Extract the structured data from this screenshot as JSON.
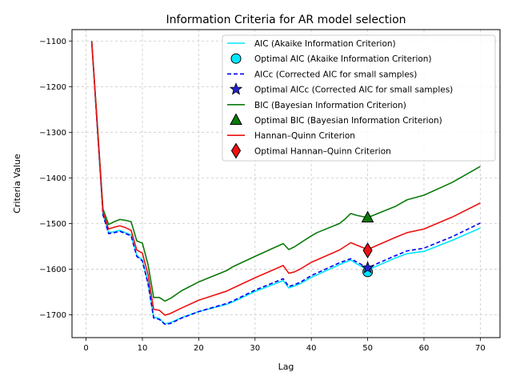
{
  "chart_data": {
    "type": "line",
    "title": "Information Criteria for AR model selection",
    "xlabel": "Lag",
    "ylabel": "Criteria Value",
    "xlim": [
      -2.5,
      73.5
    ],
    "ylim": [
      -1750,
      -1075
    ],
    "xticks": [
      0,
      10,
      20,
      30,
      40,
      50,
      60,
      70
    ],
    "yticks": [
      -1700,
      -1600,
      -1500,
      -1400,
      -1300,
      -1200,
      -1100
    ],
    "grid": true,
    "legend_position": "top-right",
    "series": [
      {
        "name": "AIC (Akaike Information Criterion)",
        "style": "solid",
        "color": "#00e5ff",
        "points": [
          [
            1,
            -1101
          ],
          [
            2,
            -1290
          ],
          [
            3,
            -1480
          ],
          [
            4,
            -1520
          ],
          [
            5,
            -1518
          ],
          [
            6,
            -1515
          ],
          [
            7,
            -1520
          ],
          [
            8,
            -1525
          ],
          [
            9,
            -1570
          ],
          [
            10,
            -1580
          ],
          [
            11,
            -1630
          ],
          [
            12,
            -1705
          ],
          [
            13,
            -1708
          ],
          [
            14,
            -1720
          ],
          [
            15,
            -1717
          ],
          [
            17,
            -1706
          ],
          [
            20,
            -1693
          ],
          [
            25,
            -1677
          ],
          [
            26,
            -1672
          ],
          [
            30,
            -1649
          ],
          [
            35,
            -1625
          ],
          [
            36,
            -1641
          ],
          [
            37,
            -1637
          ],
          [
            38,
            -1632
          ],
          [
            40,
            -1618
          ],
          [
            45,
            -1590
          ],
          [
            47,
            -1580
          ],
          [
            48,
            -1588
          ],
          [
            50,
            -1602
          ],
          [
            55,
            -1575
          ],
          [
            57,
            -1566
          ],
          [
            60,
            -1561
          ],
          [
            65,
            -1537
          ],
          [
            70,
            -1510
          ]
        ]
      },
      {
        "name": "AICc (Corrected AIC for small samples)",
        "style": "dashed",
        "color": "#0000ee",
        "points": [
          [
            1,
            -1101
          ],
          [
            2,
            -1290
          ],
          [
            3,
            -1481
          ],
          [
            4,
            -1522
          ],
          [
            5,
            -1520
          ],
          [
            6,
            -1517
          ],
          [
            7,
            -1522
          ],
          [
            8,
            -1527
          ],
          [
            9,
            -1572
          ],
          [
            10,
            -1582
          ],
          [
            11,
            -1632
          ],
          [
            12,
            -1707
          ],
          [
            13,
            -1710
          ],
          [
            14,
            -1721
          ],
          [
            15,
            -1719
          ],
          [
            17,
            -1707
          ],
          [
            20,
            -1693
          ],
          [
            25,
            -1675
          ],
          [
            26,
            -1670
          ],
          [
            30,
            -1646
          ],
          [
            35,
            -1621
          ],
          [
            36,
            -1638
          ],
          [
            37,
            -1634
          ],
          [
            38,
            -1629
          ],
          [
            40,
            -1614
          ],
          [
            45,
            -1586
          ],
          [
            47,
            -1577
          ],
          [
            48,
            -1584
          ],
          [
            50,
            -1597
          ],
          [
            55,
            -1570
          ],
          [
            57,
            -1560
          ],
          [
            60,
            -1554
          ],
          [
            65,
            -1529
          ],
          [
            70,
            -1499
          ]
        ]
      },
      {
        "name": "BIC (Bayesian Information Criterion)",
        "style": "solid",
        "color": "#0a7a0a",
        "points": [
          [
            1,
            -1100
          ],
          [
            2,
            -1282
          ],
          [
            3,
            -1468
          ],
          [
            4,
            -1502
          ],
          [
            5,
            -1496
          ],
          [
            6,
            -1491
          ],
          [
            7,
            -1493
          ],
          [
            8,
            -1496
          ],
          [
            9,
            -1538
          ],
          [
            10,
            -1543
          ],
          [
            11,
            -1590
          ],
          [
            12,
            -1662
          ],
          [
            13,
            -1662
          ],
          [
            14,
            -1670
          ],
          [
            15,
            -1664
          ],
          [
            17,
            -1647
          ],
          [
            20,
            -1628
          ],
          [
            25,
            -1603
          ],
          [
            26,
            -1595
          ],
          [
            30,
            -1572
          ],
          [
            35,
            -1544
          ],
          [
            36,
            -1557
          ],
          [
            37,
            -1551
          ],
          [
            38,
            -1543
          ],
          [
            40,
            -1527
          ],
          [
            41,
            -1520
          ],
          [
            45,
            -1500
          ],
          [
            46,
            -1490
          ],
          [
            47,
            -1478
          ],
          [
            48,
            -1482
          ],
          [
            50,
            -1487
          ],
          [
            55,
            -1462
          ],
          [
            57,
            -1448
          ],
          [
            60,
            -1438
          ],
          [
            65,
            -1410
          ],
          [
            70,
            -1375
          ]
        ]
      },
      {
        "name": "Hannan–Quinn Criterion",
        "style": "solid",
        "color": "#ee1111",
        "points": [
          [
            1,
            -1101
          ],
          [
            2,
            -1286
          ],
          [
            3,
            -1474
          ],
          [
            4,
            -1512
          ],
          [
            5,
            -1508
          ],
          [
            6,
            -1505
          ],
          [
            7,
            -1509
          ],
          [
            8,
            -1515
          ],
          [
            9,
            -1558
          ],
          [
            10,
            -1565
          ],
          [
            11,
            -1612
          ],
          [
            12,
            -1688
          ],
          [
            13,
            -1690
          ],
          [
            14,
            -1701
          ],
          [
            15,
            -1697
          ],
          [
            17,
            -1685
          ],
          [
            20,
            -1668
          ],
          [
            25,
            -1648
          ],
          [
            26,
            -1642
          ],
          [
            30,
            -1619
          ],
          [
            35,
            -1592
          ],
          [
            36,
            -1609
          ],
          [
            37,
            -1606
          ],
          [
            38,
            -1600
          ],
          [
            40,
            -1585
          ],
          [
            45,
            -1558
          ],
          [
            47,
            -1542
          ],
          [
            48,
            -1547
          ],
          [
            50,
            -1557
          ],
          [
            55,
            -1530
          ],
          [
            57,
            -1520
          ],
          [
            60,
            -1512
          ],
          [
            65,
            -1486
          ],
          [
            70,
            -1455
          ]
        ]
      }
    ],
    "optimal_points": [
      {
        "name": "Optimal AIC (Akaike Information Criterion)",
        "marker": "circle",
        "color": "#00e5ff",
        "x": 50,
        "y": -1606
      },
      {
        "name": "Optimal AICc (Corrected AIC for small samples)",
        "marker": "star",
        "color": "#2222cc",
        "x": 50,
        "y": -1597
      },
      {
        "name": "Optimal BIC (Bayesian Information Criterion)",
        "marker": "triangle",
        "color": "#0a7a0a",
        "x": 50,
        "y": -1487
      },
      {
        "name": "Optimal Hannan–Quinn Criterion",
        "marker": "diamond",
        "color": "#ee1111",
        "x": 50,
        "y": -1559
      }
    ],
    "legend": [
      {
        "label": "AIC (Akaike Information Criterion)",
        "kind": "line",
        "style": "solid",
        "color": "#00e5ff"
      },
      {
        "label": "Optimal AIC (Akaike Information Criterion)",
        "kind": "marker",
        "marker": "circle",
        "color": "#00e5ff"
      },
      {
        "label": "AICc (Corrected AIC for small samples)",
        "kind": "line",
        "style": "dashed",
        "color": "#0000ee"
      },
      {
        "label": "Optimal AICc (Corrected AIC for small samples)",
        "kind": "marker",
        "marker": "star",
        "color": "#2222cc"
      },
      {
        "label": "BIC (Bayesian Information Criterion)",
        "kind": "line",
        "style": "solid",
        "color": "#0a7a0a"
      },
      {
        "label": "Optimal BIC (Bayesian Information Criterion)",
        "kind": "marker",
        "marker": "triangle",
        "color": "#0a7a0a"
      },
      {
        "label": "Hannan–Quinn Criterion",
        "kind": "line",
        "style": "solid",
        "color": "#ee1111"
      },
      {
        "label": "Optimal Hannan–Quinn Criterion",
        "kind": "marker",
        "marker": "diamond",
        "color": "#ee1111"
      }
    ]
  }
}
